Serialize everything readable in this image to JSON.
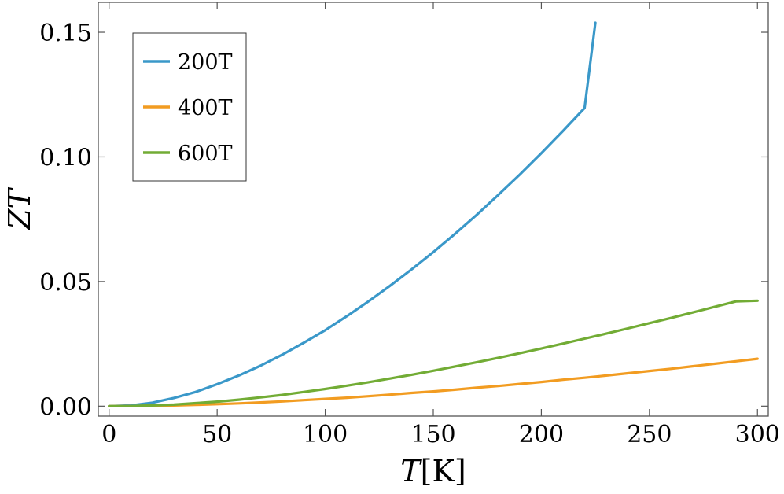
{
  "chart_data": {
    "type": "line",
    "xlabel": {
      "var": "T",
      "unit": "[K]"
    },
    "ylabel": "ZT",
    "xlim": [
      -5,
      305
    ],
    "ylim": [
      -0.004,
      0.162
    ],
    "xticks": [
      0,
      50,
      100,
      150,
      200,
      250,
      300
    ],
    "xtick_labels": [
      "0",
      "50",
      "100",
      "150",
      "200",
      "250",
      "300"
    ],
    "yticks": [
      0.0,
      0.05,
      0.1,
      0.15
    ],
    "ytick_labels": [
      "0.00",
      "0.05",
      "0.10",
      "0.15"
    ],
    "grid": false,
    "legend_position": "top-left",
    "series": [
      {
        "name": "200T",
        "color": "#3a98c9",
        "x": [
          0,
          10,
          20,
          30,
          40,
          50,
          60,
          70,
          80,
          90,
          100,
          110,
          120,
          130,
          140,
          150,
          160,
          170,
          180,
          190,
          200,
          210,
          220,
          225
        ],
        "y": [
          0.0,
          0.0003,
          0.0014,
          0.0033,
          0.0057,
          0.0088,
          0.0123,
          0.0162,
          0.0206,
          0.0254,
          0.0305,
          0.0361,
          0.042,
          0.0483,
          0.0549,
          0.0618,
          0.0691,
          0.0767,
          0.0847,
          0.0929,
          0.1015,
          0.1104,
          0.1196,
          0.1538
        ]
      },
      {
        "name": "400T",
        "color": "#f29c21",
        "x": [
          0,
          10,
          20,
          30,
          40,
          50,
          60,
          70,
          80,
          90,
          100,
          110,
          120,
          130,
          140,
          150,
          160,
          170,
          180,
          190,
          200,
          210,
          220,
          230,
          240,
          250,
          260,
          270,
          280,
          290,
          300
        ],
        "y": [
          0.0,
          3e-05,
          0.0001,
          0.0003,
          0.0005,
          0.0008,
          0.0011,
          0.0015,
          0.0019,
          0.0024,
          0.0029,
          0.0034,
          0.004,
          0.0046,
          0.0053,
          0.0059,
          0.0066,
          0.0074,
          0.0081,
          0.0089,
          0.0097,
          0.0106,
          0.0114,
          0.0123,
          0.0132,
          0.0141,
          0.015,
          0.016,
          0.017,
          0.018,
          0.019
        ]
      },
      {
        "name": "600T",
        "color": "#72ac35",
        "x": [
          0,
          10,
          20,
          30,
          40,
          50,
          60,
          70,
          80,
          90,
          100,
          110,
          120,
          130,
          140,
          150,
          160,
          170,
          180,
          190,
          200,
          210,
          220,
          230,
          240,
          250,
          260,
          270,
          280,
          290,
          300
        ],
        "y": [
          0.0,
          5e-05,
          0.0003,
          0.0006,
          0.0012,
          0.0018,
          0.0026,
          0.0035,
          0.0045,
          0.0057,
          0.0069,
          0.0082,
          0.0096,
          0.0111,
          0.0126,
          0.0142,
          0.0159,
          0.0176,
          0.0194,
          0.0212,
          0.0231,
          0.0251,
          0.0271,
          0.0291,
          0.0312,
          0.0333,
          0.0354,
          0.0376,
          0.0398,
          0.042,
          0.0423
        ]
      }
    ]
  }
}
